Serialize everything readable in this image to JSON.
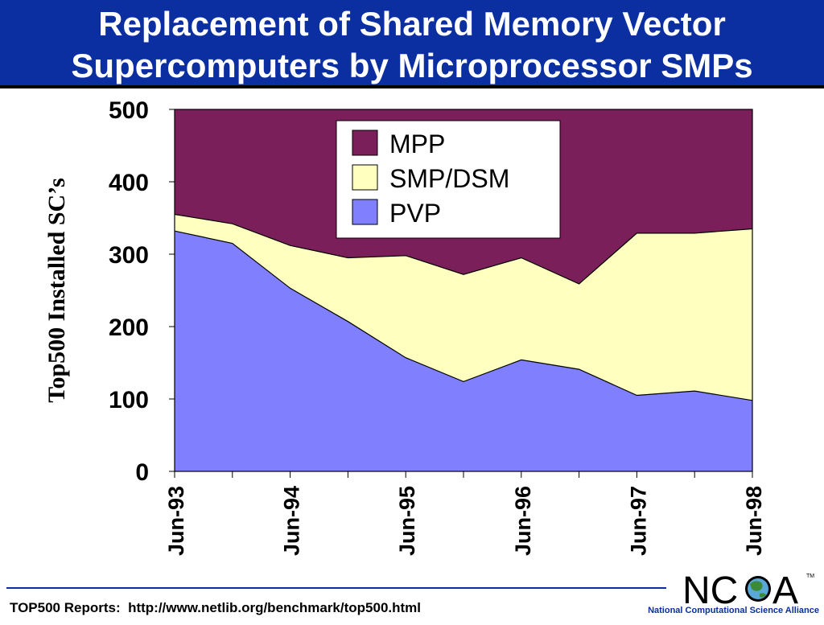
{
  "slide": {
    "title_line1": "Replacement of Shared Memory Vector",
    "title_line2": "Supercomputers by Microprocessor SMPs",
    "footer": "TOP500 Reports:  http://www.netlib.org/benchmark/top500.html",
    "org_name": "National Computational Science Alliance",
    "logo_text": "NCSA",
    "logo_tm": "TM"
  },
  "colors": {
    "title_bg": "#0b2ea0",
    "mpp": "#7b1f5a",
    "smp": "#ffffc0",
    "pvp": "#8080ff",
    "org_text": "#0b2ea0"
  },
  "chart_data": {
    "type": "area",
    "stacked": true,
    "ylabel": "Top500 Installed SC’s",
    "xlabel": "",
    "ylim": [
      0,
      500
    ],
    "yticks": [
      0,
      100,
      200,
      300,
      400,
      500
    ],
    "xtick_labels": [
      "Jun-93",
      "Jun-94",
      "Jun-95",
      "Jun-96",
      "Jun-97",
      "Jun-98"
    ],
    "x": [
      "Jun-93",
      "Nov-93",
      "Jun-94",
      "Nov-94",
      "Jun-95",
      "Nov-95",
      "Jun-96",
      "Nov-96",
      "Jun-97",
      "Nov-97",
      "Jun-98"
    ],
    "series": [
      {
        "name": "PVP",
        "values": [
          332,
          315,
          253,
          207,
          157,
          124,
          154,
          141,
          105,
          111,
          98
        ]
      },
      {
        "name": "SMP/DSM",
        "values": [
          23,
          27,
          59,
          88,
          141,
          148,
          141,
          118,
          224,
          218,
          237
        ]
      },
      {
        "name": "MPP",
        "values": [
          145,
          158,
          188,
          205,
          202,
          228,
          205,
          241,
          171,
          171,
          165
        ]
      }
    ],
    "legend": {
      "position": "top-center",
      "entries": [
        "MPP",
        "SMP/DSM",
        "PVP"
      ]
    },
    "grid": false
  }
}
